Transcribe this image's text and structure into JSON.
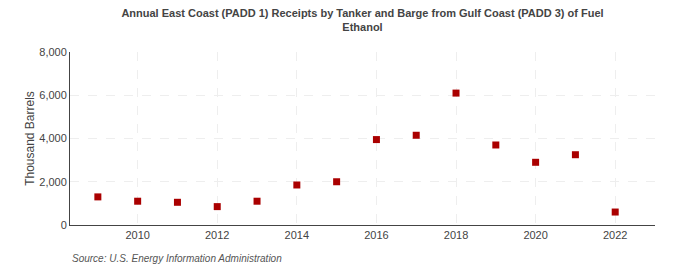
{
  "chart_data": {
    "type": "scatter",
    "title": "Annual East Coast (PADD 1) Receipts by Tanker and Barge from Gulf Coast (PADD 3) of Fuel\nEthanol",
    "ylabel": "Thousand Barrels",
    "annotations": [
      "Source: U.S. Energy Information Administration"
    ],
    "x": [
      2009,
      2010,
      2011,
      2012,
      2013,
      2014,
      2015,
      2016,
      2017,
      2018,
      2019,
      2020,
      2021,
      2022
    ],
    "values": [
      1300,
      1100,
      1050,
      850,
      1100,
      1850,
      2000,
      3950,
      4150,
      6100,
      3700,
      2900,
      3250,
      600
    ],
    "color": "#aa0000",
    "marker": "square",
    "xlim": [
      2008.3,
      2023.0
    ],
    "xticks": [
      2010,
      2012,
      2014,
      2016,
      2018,
      2020,
      2022
    ],
    "ylim": [
      0,
      8000
    ],
    "yticks": [
      0,
      {
        "value": 2000,
        "label": "2,000"
      },
      {
        "value": 4000,
        "label": "4,000"
      },
      {
        "value": 6000,
        "label": "6,000"
      },
      {
        "value": 8000,
        "label": "8,000"
      }
    ],
    "grid": true
  }
}
